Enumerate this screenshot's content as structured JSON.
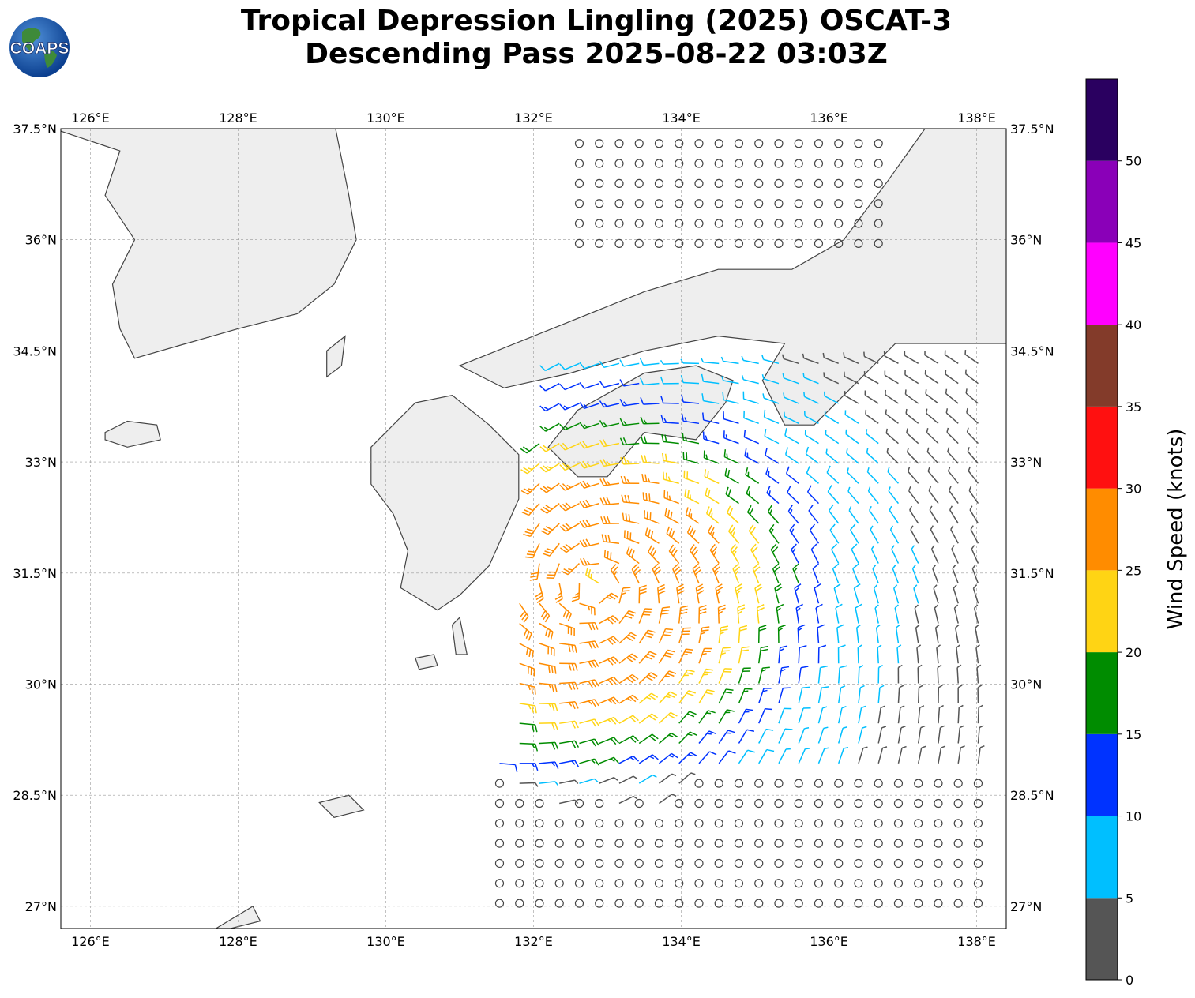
{
  "title": {
    "line1": "Tropical Depression Lingling (2025) OSCAT-3",
    "line2": "Descending Pass 2025-08-22 03:03Z"
  },
  "logo": {
    "text": "COAPS",
    "icon": "globe-logo-icon"
  },
  "map": {
    "projection": "plate-carree",
    "lon_range": [
      125.6,
      138.4
    ],
    "lat_range": [
      26.7,
      37.5
    ],
    "top_lon_labels": [
      "126°E",
      "128°E",
      "130°E",
      "132°E",
      "134°E",
      "136°E",
      "138°E"
    ],
    "bottom_lon_labels": [
      "126°E",
      "128°E",
      "130°E",
      "132°E",
      "134°E",
      "136°E",
      "138°E"
    ],
    "left_lat_labels": [
      "37.5°N",
      "36°N",
      "34.5°N",
      "33°N",
      "31.5°N",
      "30°N",
      "28.5°N",
      "27°N"
    ],
    "right_lat_labels": [
      "37.5°N",
      "36°N",
      "34.5°N",
      "33°N",
      "31.5°N",
      "30°N",
      "28.5°N",
      "27°N"
    ],
    "lon_values": [
      126,
      128,
      130,
      132,
      134,
      136,
      138
    ],
    "lat_values": [
      37.5,
      36,
      34.5,
      33,
      31.5,
      30,
      28.5,
      27
    ],
    "gridlines": true,
    "land_color": "#eeeeee",
    "coast_color": "#444444",
    "calm_symbol": "circle"
  },
  "colorbar": {
    "label": "Wind Speed (knots)",
    "tick_labels": [
      "0",
      "5",
      "10",
      "15",
      "20",
      "25",
      "30",
      "35",
      "40",
      "45",
      "50"
    ],
    "bins": [
      {
        "min": 0,
        "max": 5,
        "color": "#555555"
      },
      {
        "min": 5,
        "max": 10,
        "color": "#00bfff"
      },
      {
        "min": 10,
        "max": 15,
        "color": "#0033ff"
      },
      {
        "min": 15,
        "max": 20,
        "color": "#008c00"
      },
      {
        "min": 20,
        "max": 25,
        "color": "#ffd414"
      },
      {
        "min": 25,
        "max": 30,
        "color": "#ff8c00"
      },
      {
        "min": 30,
        "max": 35,
        "color": "#ff1010"
      },
      {
        "min": 35,
        "max": 40,
        "color": "#833b2a"
      },
      {
        "min": 40,
        "max": 45,
        "color": "#ff00ff"
      },
      {
        "min": 45,
        "max": 50,
        "color": "#8a00b8"
      },
      {
        "min": 50,
        "max": 55,
        "color": "#2a0060"
      }
    ]
  },
  "storm": {
    "center_lon": 132.8,
    "center_lat": 31.3,
    "max_wind_kt": 26,
    "swath_east_edge_north": [
      [
        132.5,
        34.5
      ],
      [
        138.2,
        34.5
      ]
    ]
  }
}
